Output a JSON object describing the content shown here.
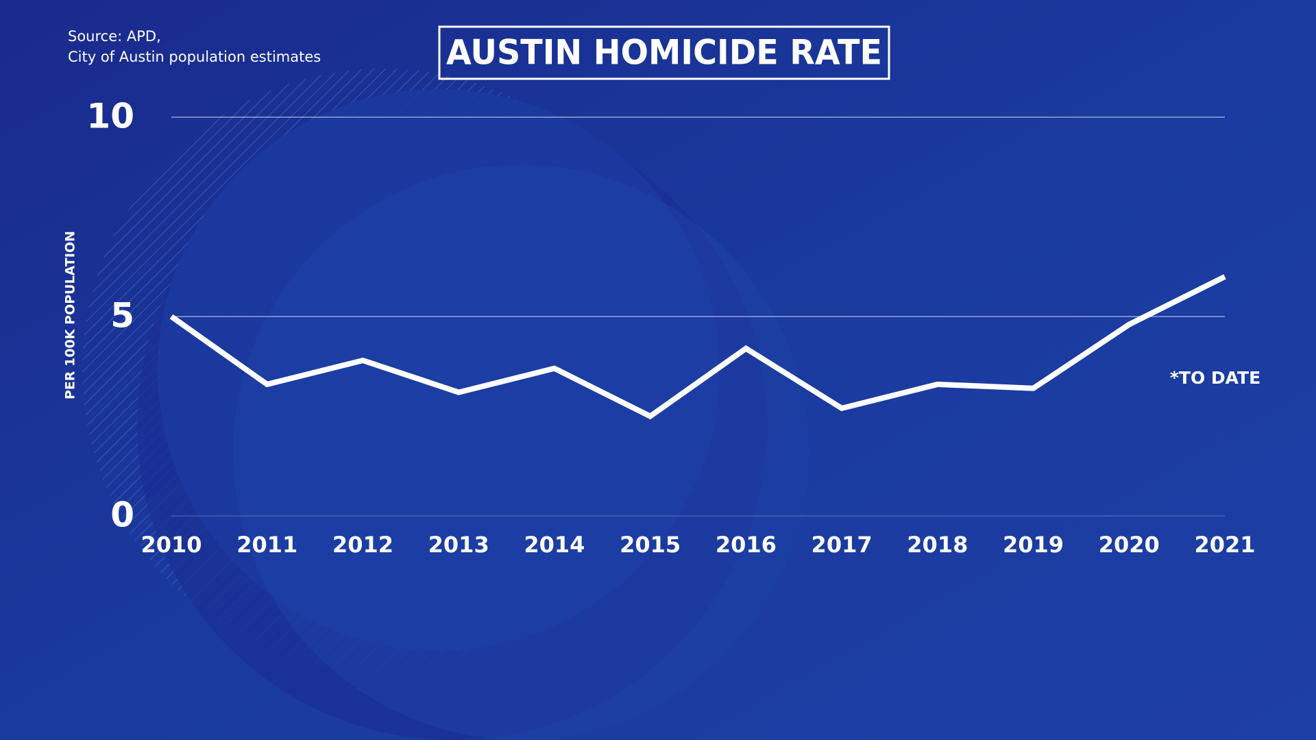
{
  "chart_data": {
    "type": "line",
    "title": "AUSTIN HOMICIDE RATE",
    "source": [
      "Source: APD,",
      "City of Austin population estimates"
    ],
    "y_label": "PER 100K POPULATION",
    "annotation": "*TO DATE",
    "categories": [
      "2010",
      "2011",
      "2012",
      "2013",
      "2014",
      "2015",
      "2016",
      "2017",
      "2018",
      "2019",
      "2020",
      "2021"
    ],
    "values": [
      5.0,
      3.3,
      3.9,
      3.1,
      3.7,
      2.5,
      4.2,
      2.7,
      3.3,
      3.2,
      4.8,
      6.0
    ],
    "color": "#ffffff",
    "ylim": [
      0,
      10
    ],
    "yticks": [
      0,
      5,
      10
    ],
    "grid": true
  }
}
